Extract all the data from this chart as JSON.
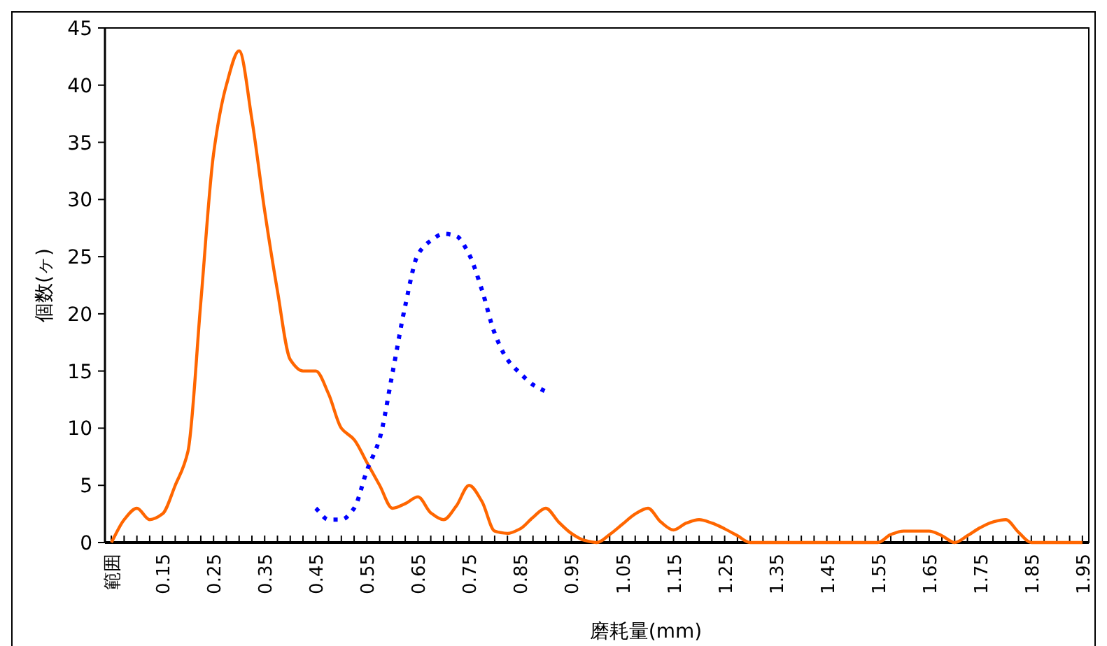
{
  "chart_data": {
    "type": "line",
    "xlabel": "磨耗量(mm)",
    "ylabel": "個数(ヶ)",
    "categories": [
      "範囲",
      null,
      null,
      null,
      "0.15",
      null,
      null,
      null,
      "0.25",
      null,
      null,
      null,
      "0.35",
      null,
      null,
      null,
      "0.45",
      null,
      null,
      null,
      "0.55",
      null,
      null,
      null,
      "0.65",
      null,
      null,
      null,
      "0.75",
      null,
      null,
      null,
      "0.85",
      null,
      null,
      null,
      "0.95",
      null,
      null,
      null,
      "1.05",
      null,
      null,
      null,
      "1.15",
      null,
      null,
      null,
      "1.25",
      null,
      null,
      null,
      "1.35",
      null,
      null,
      null,
      "1.45",
      null,
      null,
      null,
      "1.55",
      null,
      null,
      null,
      "1.65",
      null,
      null,
      null,
      "1.75",
      null,
      null,
      null,
      "1.85",
      null,
      null,
      null,
      "1.95"
    ],
    "series": [
      {
        "color": "#ff6600",
        "line_style": "solid",
        "values": [
          0,
          2,
          3,
          2,
          2.5,
          5,
          8,
          21,
          34,
          40,
          43,
          37,
          29,
          22,
          16,
          15,
          15,
          13,
          10,
          9,
          7,
          5,
          3,
          3.4,
          4,
          2.6,
          2,
          3.2,
          5,
          3.6,
          1,
          0.8,
          1.2,
          2.2,
          3,
          1.8,
          0.8,
          0.2,
          0,
          0.7,
          1.6,
          2.5,
          3,
          1.8,
          1.1,
          1.7,
          2,
          1.7,
          1.2,
          0.6,
          0,
          0,
          0,
          0,
          0,
          0,
          0,
          0,
          0,
          0,
          0,
          0.7,
          1,
          1,
          1,
          0.6,
          0,
          0.6,
          1.3,
          1.8,
          2,
          0.9,
          0,
          0,
          0,
          0,
          0
        ]
      },
      {
        "color": "#0000ff",
        "line_style": "dotted",
        "values": [
          null,
          null,
          null,
          null,
          null,
          null,
          null,
          null,
          null,
          null,
          null,
          null,
          null,
          null,
          null,
          null,
          3,
          2,
          2,
          3,
          6.3,
          9.1,
          14.8,
          20.7,
          25.2,
          26.4,
          27,
          26.8,
          25.2,
          22.1,
          18.3,
          16,
          14.8,
          13.8,
          13.2,
          null,
          null,
          null,
          null,
          null,
          null,
          null,
          null,
          null,
          null,
          null,
          null,
          null,
          null,
          null,
          null,
          null,
          null,
          null,
          null,
          null,
          null,
          null,
          null,
          null,
          null,
          null,
          null,
          null,
          null,
          null,
          null,
          null,
          null,
          null,
          null,
          null,
          null,
          null,
          null,
          null,
          null
        ]
      }
    ],
    "ylim": [
      0,
      45
    ],
    "yticks": [
      0,
      5,
      10,
      15,
      20,
      25,
      30,
      35,
      40,
      45
    ],
    "grid": false,
    "marker": "none"
  }
}
